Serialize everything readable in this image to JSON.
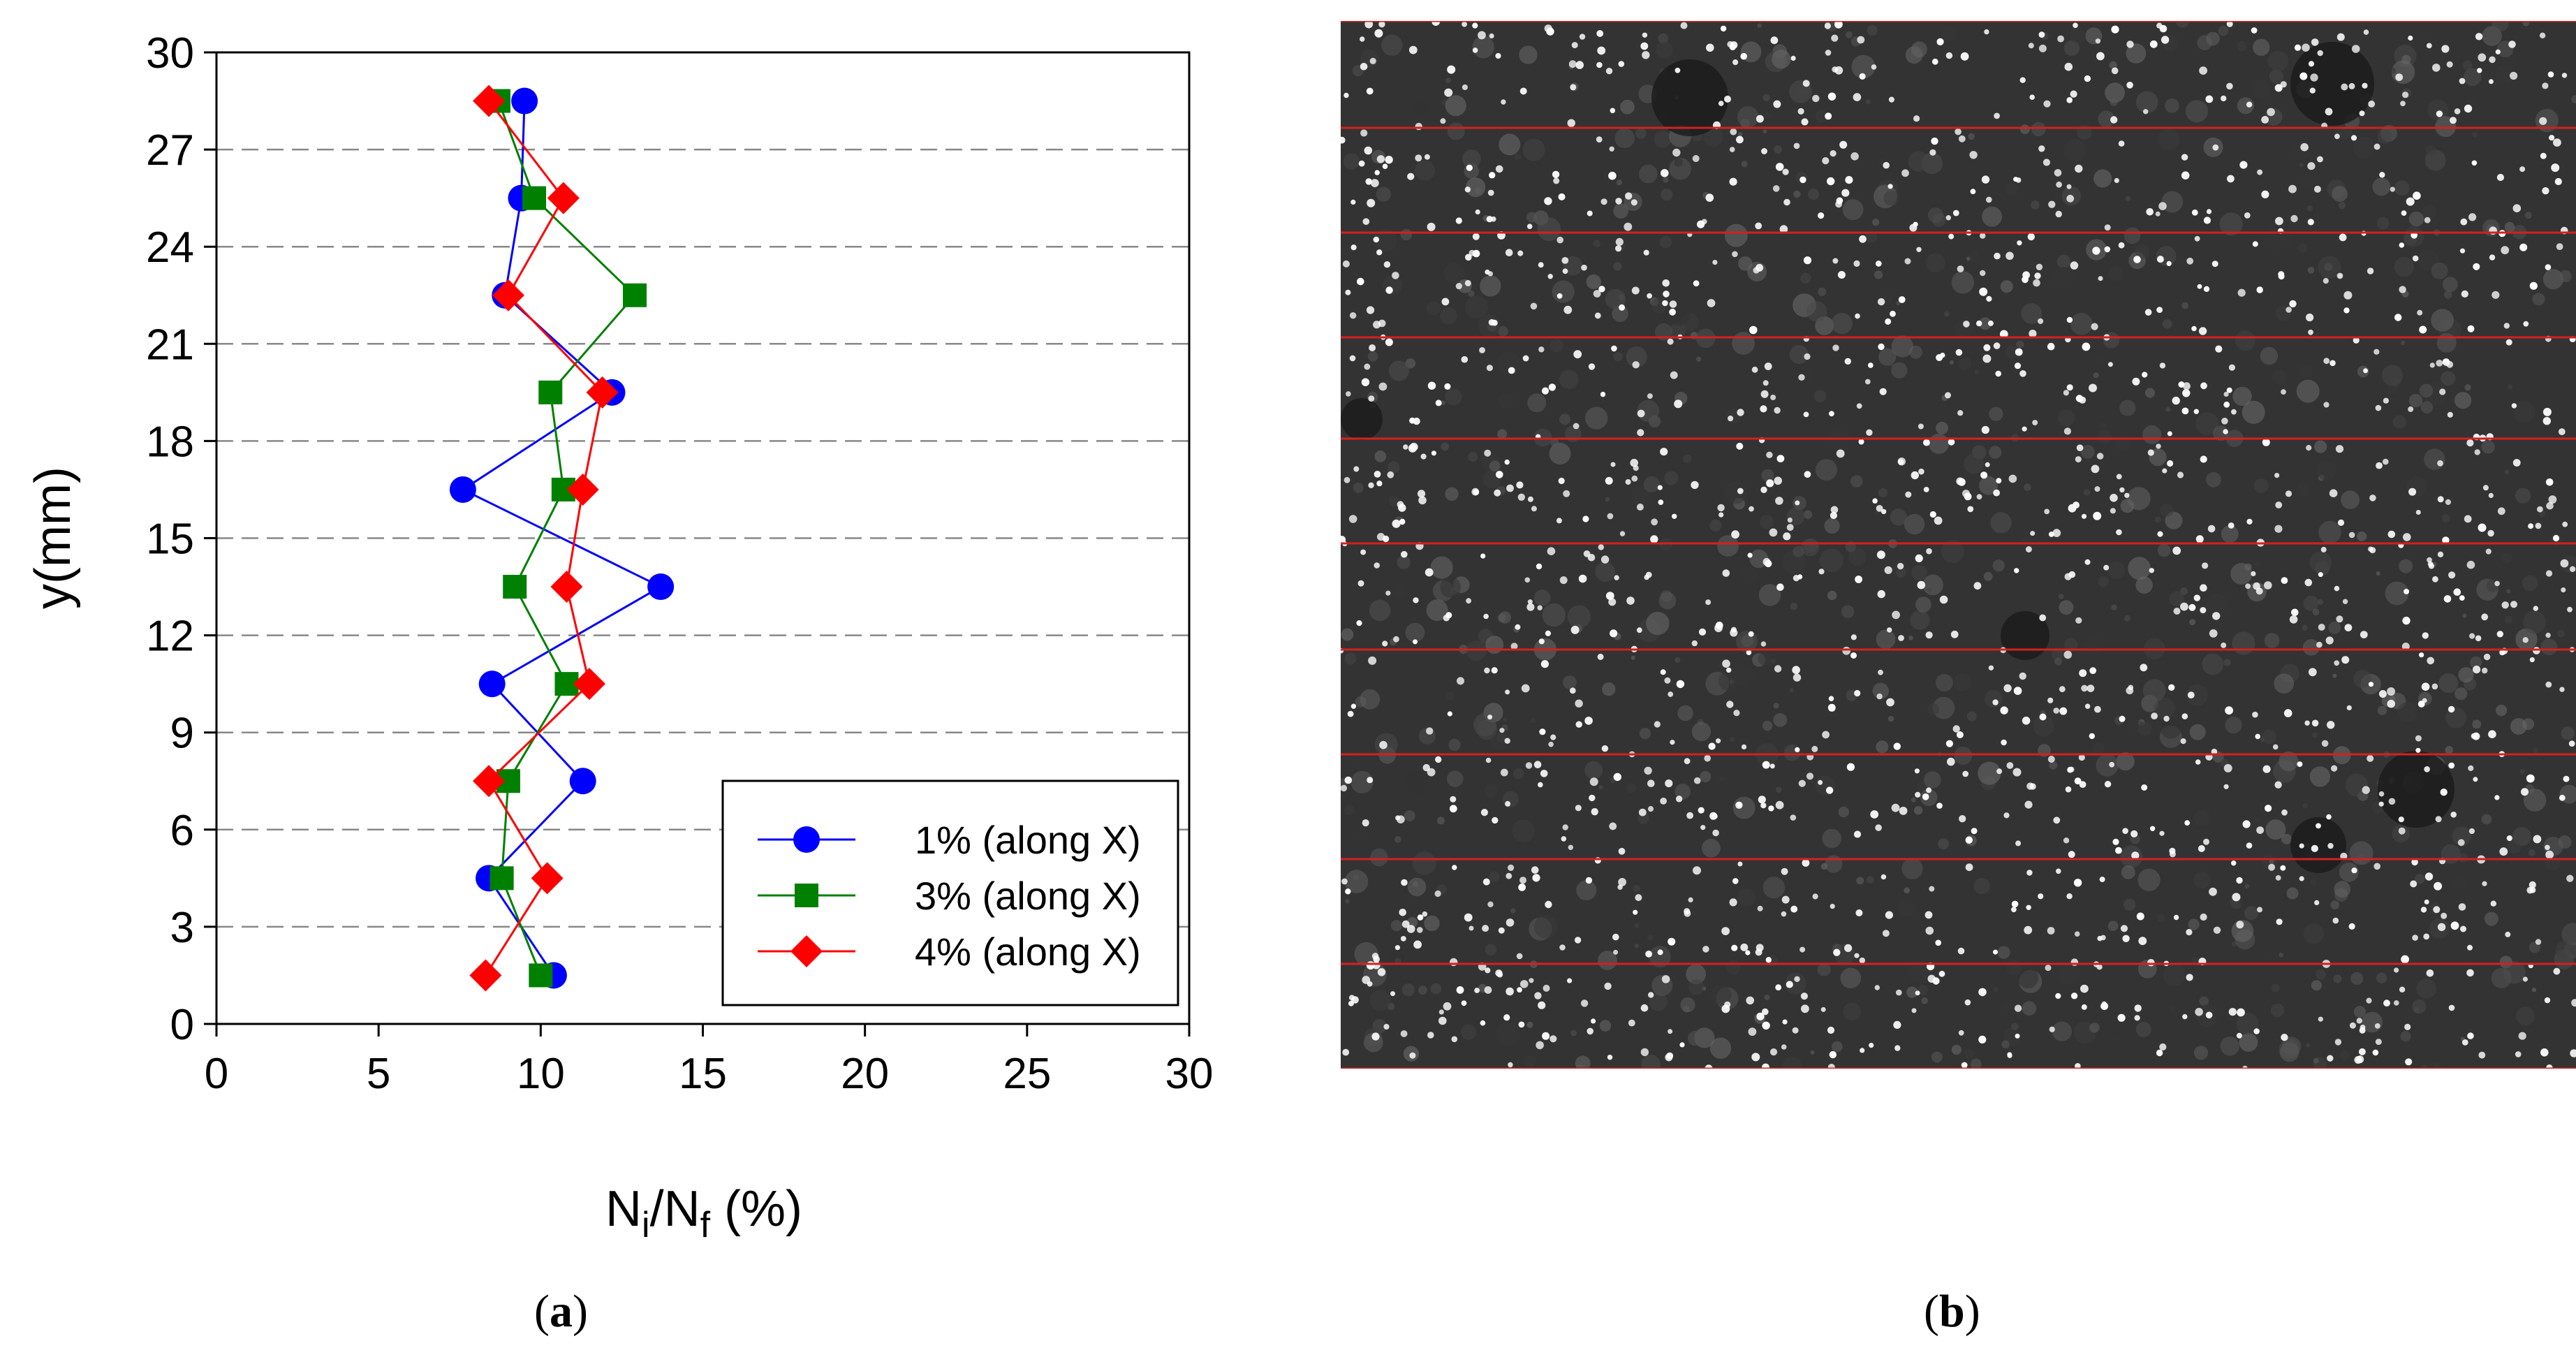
{
  "chart_data": {
    "type": "scatter",
    "xlabel_main": "N",
    "xlabel_sub1": "i",
    "xlabel_mid": "/N",
    "xlabel_sub2": "f",
    "xlabel_tail": " (%)",
    "ylabel": "y(mm)",
    "xlim": [
      0,
      30
    ],
    "ylim": [
      0,
      30
    ],
    "xticks": [
      0,
      5,
      10,
      15,
      20,
      25,
      30
    ],
    "yticks": [
      0,
      3,
      6,
      9,
      12,
      15,
      18,
      21,
      24,
      27,
      30
    ],
    "grid": "horizontal dashed",
    "legend_position": "bottom-right",
    "y": [
      1.5,
      4.5,
      7.5,
      10.5,
      13.5,
      16.5,
      19.5,
      22.5,
      25.5,
      28.5
    ],
    "series": [
      {
        "name": "1% (along X)",
        "color": "#0000ff",
        "marker": "circle",
        "x": [
          10.4,
          8.4,
          11.3,
          8.5,
          13.7,
          7.6,
          12.2,
          8.9,
          9.4,
          9.5
        ]
      },
      {
        "name": "3% (along X)",
        "color": "#008000",
        "marker": "square",
        "x": [
          10.0,
          8.8,
          9.0,
          10.8,
          9.2,
          10.7,
          10.3,
          12.9,
          9.8,
          8.7
        ]
      },
      {
        "name": "4% (along X)",
        "color": "#ff0000",
        "marker": "diamond",
        "x": [
          8.3,
          10.2,
          8.4,
          11.5,
          10.8,
          11.3,
          11.9,
          9.0,
          10.7,
          8.4
        ]
      }
    ]
  },
  "captions": {
    "a": "a",
    "b": "b"
  },
  "micrograph": {
    "background": "#333333",
    "line_color": "#d42020",
    "line_count": 10,
    "particle_color": "#ffffff"
  }
}
